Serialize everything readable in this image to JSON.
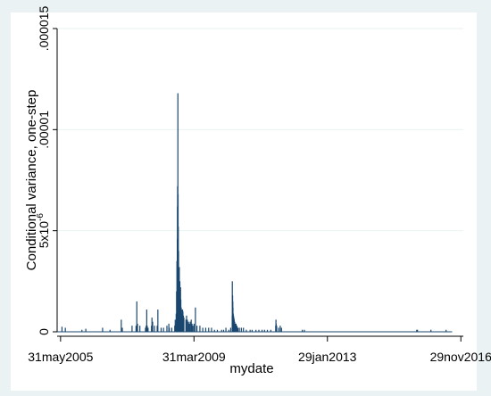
{
  "chart_data": {
    "type": "bar",
    "title": "",
    "xlabel": "mydate",
    "ylabel": "Conditional variance, one-step",
    "xlim": [
      "2005-04-25",
      "2016-12-25"
    ],
    "ylim": [
      0,
      1.5e-05
    ],
    "yticks": [
      {
        "value": 0,
        "label": "0"
      },
      {
        "value": 5e-06,
        "label": "5x10"
      },
      {
        "value": 1e-05,
        "label": ".00001"
      },
      {
        "value": 1.5e-05,
        "label": ".000015"
      }
    ],
    "ytick_exponent": "-6",
    "xticks": [
      {
        "value": "2005-05-31",
        "label": "31may2005"
      },
      {
        "value": "2009-03-31",
        "label": "31mar2009"
      },
      {
        "value": "2013-01-29",
        "label": "29jan2013"
      },
      {
        "value": "2016-11-29",
        "label": "29nov2016"
      }
    ],
    "grid": true,
    "colors": {
      "plot_background": "#eaf2f3",
      "panel_background": "#ffffff",
      "bars": "#1a476f",
      "grid": "#eaf2f3"
    },
    "series": [
      {
        "x": [
          "2005-06-15",
          "2005-07-20",
          "2006-01-10",
          "2006-02-20",
          "2006-08-15",
          "2006-11-01",
          "2007-02-27",
          "2007-03-10",
          "2007-06-20",
          "2007-08-01",
          "2007-08-09",
          "2007-08-16",
          "2007-09-10",
          "2007-11-08",
          "2007-11-15",
          "2007-11-21",
          "2007-11-26",
          "2007-12-05",
          "2008-01-10",
          "2008-01-15",
          "2008-01-22",
          "2008-02-10",
          "2008-03-10",
          "2008-03-17",
          "2008-04-20",
          "2008-05-15",
          "2008-06-20",
          "2008-07-10",
          "2008-07-15",
          "2008-08-10",
          "2008-09-10",
          "2008-09-15",
          "2008-09-20",
          "2008-09-25",
          "2008-09-29",
          "2008-10-03",
          "2008-10-07",
          "2008-10-09",
          "2008-10-10",
          "2008-10-13",
          "2008-10-15",
          "2008-10-17",
          "2008-10-20",
          "2008-10-22",
          "2008-10-24",
          "2008-10-28",
          "2008-11-03",
          "2008-11-06",
          "2008-11-10",
          "2008-11-13",
          "2008-11-17",
          "2008-11-20",
          "2008-11-24",
          "2008-12-01",
          "2008-12-05",
          "2008-12-10",
          "2008-12-15",
          "2009-01-05",
          "2009-01-12",
          "2009-01-20",
          "2009-02-01",
          "2009-02-10",
          "2009-02-20",
          "2009-03-02",
          "2009-03-10",
          "2009-03-20",
          "2009-04-01",
          "2009-04-15",
          "2009-05-01",
          "2009-06-01",
          "2009-07-01",
          "2009-08-01",
          "2009-09-01",
          "2009-10-01",
          "2009-11-01",
          "2009-12-01",
          "2010-01-15",
          "2010-02-05",
          "2010-03-01",
          "2010-04-01",
          "2010-04-20",
          "2010-05-06",
          "2010-05-07",
          "2010-05-10",
          "2010-05-12",
          "2010-05-14",
          "2010-05-17",
          "2010-05-20",
          "2010-05-24",
          "2010-05-27",
          "2010-06-01",
          "2010-06-08",
          "2010-06-15",
          "2010-06-25",
          "2010-07-05",
          "2010-07-20",
          "2010-08-10",
          "2010-09-01",
          "2010-10-01",
          "2010-11-10",
          "2010-12-01",
          "2011-01-10",
          "2011-02-10",
          "2011-03-15",
          "2011-04-10",
          "2011-05-10",
          "2011-06-15",
          "2011-08-05",
          "2011-08-08",
          "2011-08-10",
          "2011-08-15",
          "2011-09-05",
          "2011-09-22",
          "2011-10-05",
          "2012-05-10",
          "2012-06-01",
          "2015-08-24",
          "2015-09-01",
          "2016-01-20",
          "2016-06-27"
        ],
        "values": [
          2.5e-07,
          2e-07,
          1e-07,
          1.5e-07,
          2e-07,
          1e-07,
          6e-07,
          2e-07,
          3e-07,
          3e-07,
          1.5e-06,
          4e-07,
          3e-07,
          2e-07,
          3e-07,
          1.1e-06,
          3e-07,
          2e-07,
          3e-07,
          7e-07,
          5e-07,
          3e-07,
          3e-07,
          1.1e-06,
          2e-07,
          2e-07,
          3e-07,
          4e-07,
          2e-07,
          2e-07,
          3e-07,
          6e-07,
          4e-07,
          9e-07,
          2e-06,
          3.5e-06,
          4.6e-06,
          6.2e-06,
          7.2e-06,
          1.18e-05,
          6.8e-06,
          5.2e-06,
          4e-06,
          3e-06,
          2.4e-06,
          3.2e-06,
          2.5e-06,
          1.5e-06,
          2.2e-06,
          1.6e-06,
          1.2e-06,
          1.1e-06,
          9e-07,
          1.1e-06,
          1e-06,
          8e-07,
          7e-07,
          6e-07,
          8e-07,
          6e-07,
          5e-07,
          4e-07,
          5e-07,
          6e-07,
          4e-07,
          3e-07,
          4e-07,
          1.2e-06,
          3e-07,
          3e-07,
          2e-07,
          2e-07,
          2e-07,
          2e-07,
          1e-07,
          1e-07,
          1e-07,
          1e-07,
          2e-07,
          1e-07,
          2e-07,
          8e-07,
          2.5e-06,
          1.8e-06,
          1.5e-06,
          1.2e-06,
          9e-07,
          8e-07,
          7e-07,
          6e-07,
          5e-07,
          4e-07,
          4e-07,
          3e-07,
          2e-07,
          2e-07,
          2e-07,
          2e-07,
          1e-07,
          1e-07,
          1e-07,
          1e-07,
          1e-07,
          1e-07,
          1e-07,
          1e-07,
          1e-07,
          3e-07,
          6e-07,
          4e-07,
          3e-07,
          2e-07,
          3e-07,
          2e-07,
          1e-07,
          1e-07,
          1e-07,
          1e-07,
          1e-07,
          1e-07
        ]
      }
    ]
  }
}
